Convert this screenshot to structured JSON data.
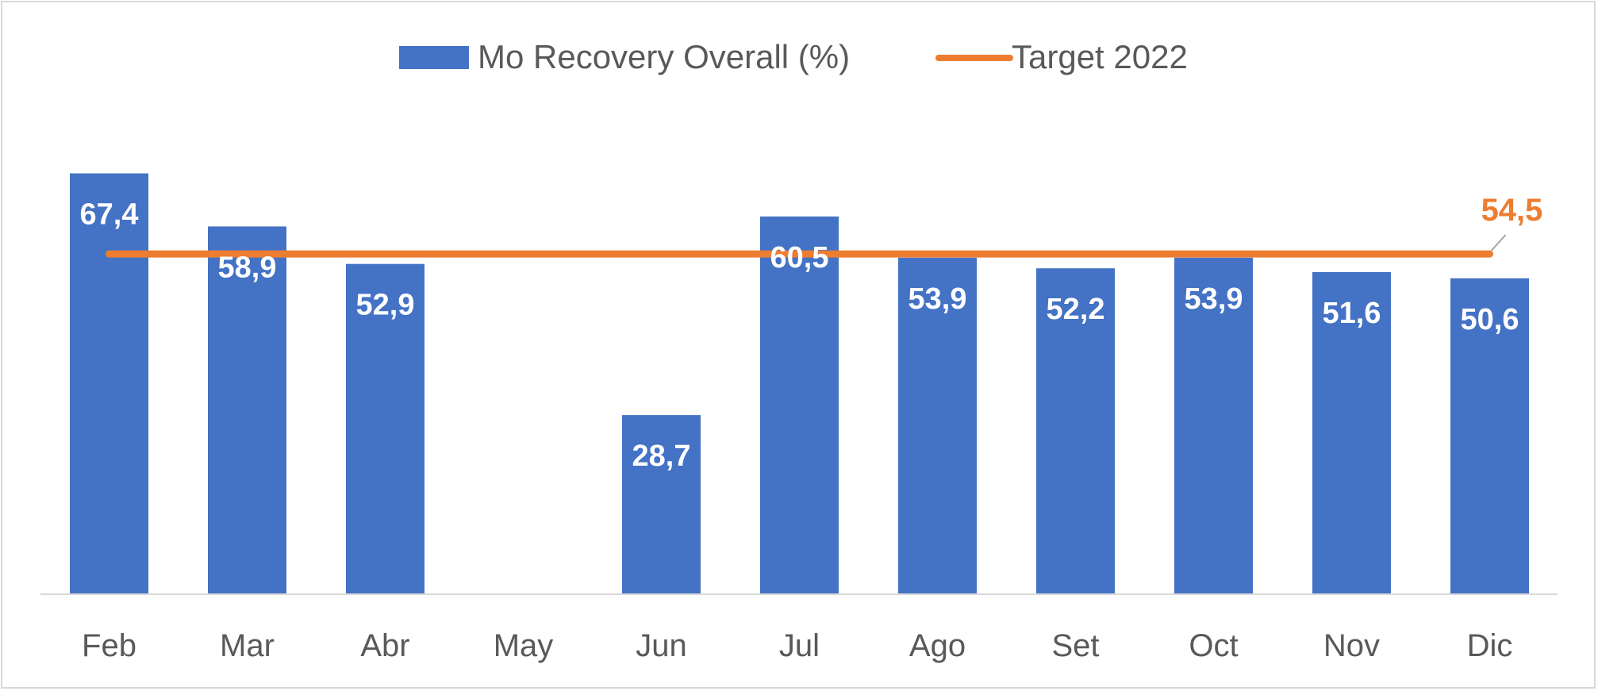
{
  "chart_data": {
    "type": "bar",
    "categories": [
      "Feb",
      "Mar",
      "Abr",
      "May",
      "Jun",
      "Jul",
      "Ago",
      "Set",
      "Oct",
      "Nov",
      "Dic"
    ],
    "series": [
      {
        "name": "Mo Recovery Overall (%)",
        "type": "bar",
        "color": "#4472C4",
        "values": [
          67.4,
          58.9,
          52.9,
          null,
          28.7,
          60.5,
          53.9,
          52.2,
          53.9,
          51.6,
          50.6
        ],
        "labels": [
          "67,4",
          "58,9",
          "52,9",
          "",
          "28,7",
          "60,5",
          "53,9",
          "52,2",
          "53,9",
          "51,6",
          "50,6"
        ]
      },
      {
        "name": "Target 2022",
        "type": "line",
        "color": "#ED7D31",
        "values": [
          54.5,
          54.5,
          54.5,
          54.5,
          54.5,
          54.5,
          54.5,
          54.5,
          54.5,
          54.5,
          54.5
        ],
        "end_label": "54,5"
      }
    ],
    "ylim": [
      0,
      75
    ],
    "grid": false,
    "legend": "top"
  }
}
